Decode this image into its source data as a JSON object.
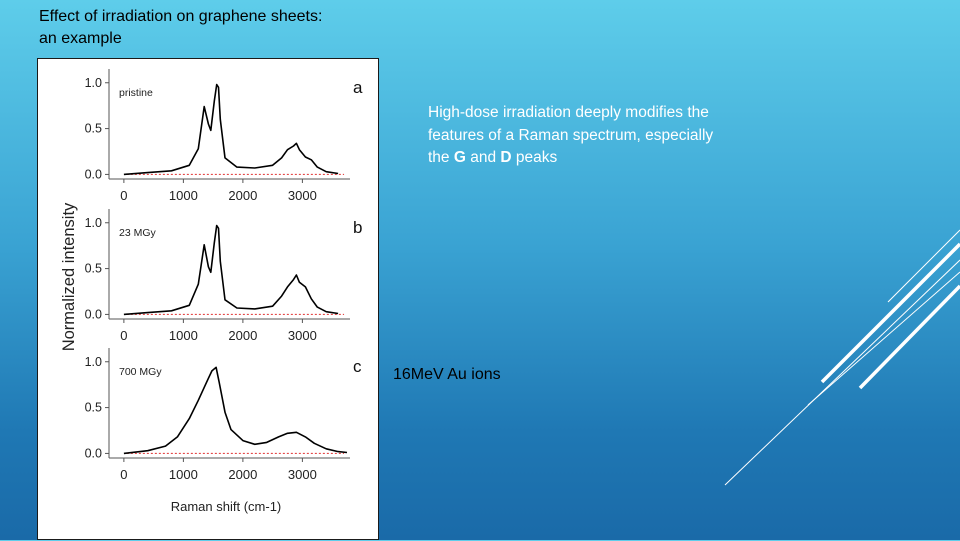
{
  "slide": {
    "title": "Effect of irradiation on graphene sheets: an example",
    "description": {
      "part1": "High-dose irradiation deeply modifies the features of a Raman spectrum, especially the ",
      "g": "G",
      "and": " and ",
      "d": "D",
      "part2": " peaks"
    },
    "ion_label": "16MeV Au ions"
  },
  "colors": {
    "accent_line": "#ffffff",
    "spectrum": "#000000",
    "fit_components": "#e03030"
  },
  "chart_data": [
    {
      "type": "line",
      "panel_letter": "a",
      "label": "pristine",
      "xlabel": "Raman shift (cm-1)",
      "ylabel": "Normalized intensity",
      "xlim": [
        -250,
        3800
      ],
      "ylim": [
        -0.05,
        1.15
      ],
      "xticks": [
        "0",
        "1000",
        "2000",
        "3000"
      ],
      "yticks": [
        "0.0",
        "0.5",
        "1.0"
      ],
      "series": [
        {
          "x": [
            0,
            400,
            800,
            1100,
            1250,
            1350,
            1420,
            1460,
            1520,
            1560,
            1590,
            1620,
            1700,
            1900,
            2200,
            2500,
            2650,
            2750,
            2850,
            2900,
            2950,
            3050,
            3150,
            3250,
            3400,
            3600
          ],
          "y": [
            0.0,
            0.02,
            0.04,
            0.1,
            0.28,
            0.74,
            0.55,
            0.48,
            0.8,
            0.98,
            0.95,
            0.6,
            0.18,
            0.08,
            0.07,
            0.1,
            0.18,
            0.27,
            0.31,
            0.34,
            0.27,
            0.19,
            0.16,
            0.08,
            0.03,
            0.01
          ]
        }
      ]
    },
    {
      "type": "line",
      "panel_letter": "b",
      "label": "23 MGy",
      "xlim": [
        -250,
        3800
      ],
      "ylim": [
        -0.05,
        1.15
      ],
      "xticks": [
        "0",
        "1000",
        "2000",
        "3000"
      ],
      "yticks": [
        "0.0",
        "0.5",
        "1.0"
      ],
      "series": [
        {
          "x": [
            0,
            400,
            800,
            1100,
            1250,
            1350,
            1420,
            1460,
            1520,
            1560,
            1590,
            1620,
            1700,
            1900,
            2200,
            2500,
            2650,
            2750,
            2850,
            2900,
            2950,
            3050,
            3150,
            3250,
            3400,
            3600
          ],
          "y": [
            0.0,
            0.02,
            0.04,
            0.1,
            0.33,
            0.76,
            0.52,
            0.46,
            0.78,
            0.97,
            0.94,
            0.58,
            0.16,
            0.07,
            0.06,
            0.09,
            0.2,
            0.3,
            0.38,
            0.43,
            0.35,
            0.3,
            0.17,
            0.08,
            0.03,
            0.01
          ]
        }
      ]
    },
    {
      "type": "line",
      "panel_letter": "c",
      "label": "700 MGy",
      "xlim": [
        -250,
        3800
      ],
      "ylim": [
        -0.05,
        1.15
      ],
      "xticks": [
        "0",
        "1000",
        "2000",
        "3000"
      ],
      "yticks": [
        "0.0",
        "0.5",
        "1.0"
      ],
      "series": [
        {
          "x": [
            0,
            400,
            700,
            900,
            1100,
            1250,
            1350,
            1420,
            1480,
            1550,
            1600,
            1700,
            1800,
            2000,
            2200,
            2400,
            2600,
            2750,
            2900,
            3050,
            3200,
            3400,
            3600,
            3750
          ],
          "y": [
            0.0,
            0.03,
            0.08,
            0.18,
            0.38,
            0.58,
            0.72,
            0.82,
            0.9,
            0.94,
            0.78,
            0.45,
            0.26,
            0.14,
            0.1,
            0.12,
            0.18,
            0.22,
            0.23,
            0.18,
            0.11,
            0.05,
            0.02,
            0.01
          ]
        }
      ]
    }
  ]
}
